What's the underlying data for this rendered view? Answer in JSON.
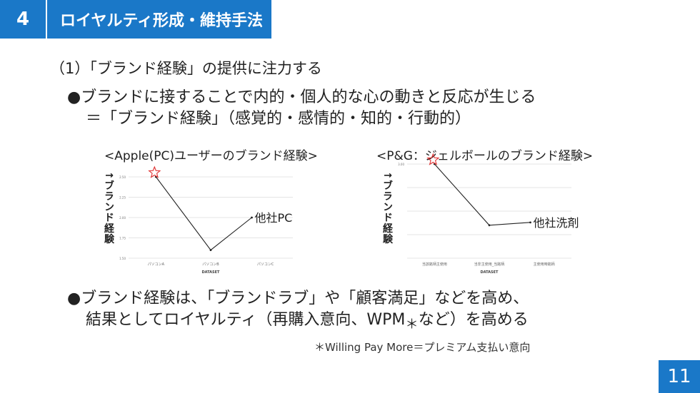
{
  "header": {
    "section_number": "4",
    "section_title": "ロイヤルティ形成・維持手法"
  },
  "subheading": "（1）「ブランド経験」の提供に注力する",
  "point1": {
    "line1": "●ブランドに接することで内的・個人的な心の動きと反応が生じる",
    "line2": "＝「ブランド経験」（感覚的・感情的・知的・行動的）"
  },
  "point2": {
    "line1": "●ブランド経験は、「ブランドラブ」や「顧客満足」などを高め、",
    "line2_pre": "結果としてロイヤルティ（再購入意向、WPM",
    "line2_sub": "＊",
    "line2_post": "など）を高める"
  },
  "footnote": "＊Willing Pay More＝プレミアム支払い意向",
  "page_number": "11",
  "colors": {
    "accent": "#1a78c8",
    "star": "#e03030",
    "line": "#222222",
    "grid": "#e4e4e4"
  },
  "chart_data": [
    {
      "type": "line",
      "title": "<Apple(PC)ユーザーのブランド経験>",
      "ylabel": "↑ブランド経験",
      "xlabel": "DATASET",
      "categories": [
        "パソコンA",
        "パソコンB",
        "パソコンC"
      ],
      "yticks": [
        "1.50",
        "1.75",
        "2.00",
        "2.25",
        "2.50"
      ],
      "ylim": [
        1.5,
        2.5
      ],
      "series": [
        {
          "values": [
            2.5,
            1.6,
            2.0
          ],
          "x_end": 1.75
        }
      ],
      "annotation": "他社PC",
      "star_marker_index": 0
    },
    {
      "type": "line",
      "title": "<P&G：ジェルボールのブランド経験>",
      "ylabel": "↑ブランド経験",
      "xlabel": "DATASET",
      "categories": [
        "当該銘柄主使用",
        "当非主使用_当銘柄",
        "主使用時銘柄"
      ],
      "yticks": [
        "",
        "",
        "",
        "",
        "3.00"
      ],
      "ylim": [
        2.0,
        3.0
      ],
      "series": [
        {
          "values": [
            3.0,
            2.35,
            2.38
          ],
          "x_end": 1.75
        }
      ],
      "annotation": "他社洗剤",
      "star_marker_index": 0
    }
  ]
}
